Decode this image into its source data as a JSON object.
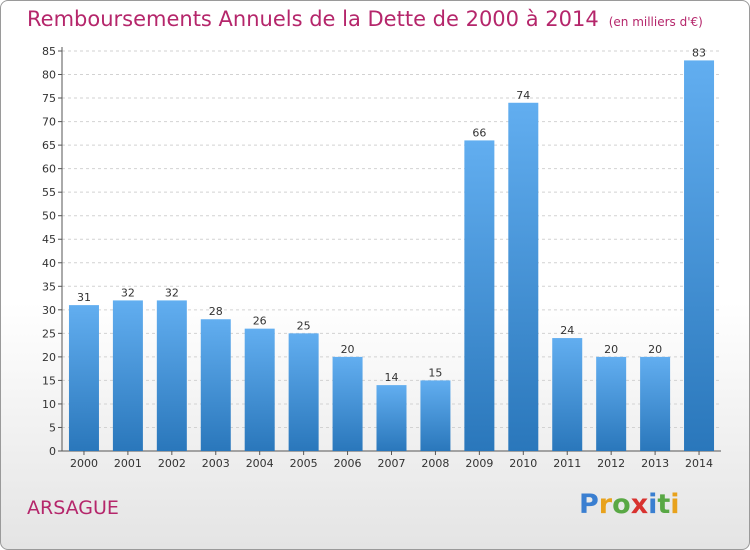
{
  "header": {
    "title": "Remboursements Annuels de la Dette de 2000 à 2014",
    "unit": "(en milliers d'€)"
  },
  "footer": {
    "commune": "ARSAGUE",
    "brand": [
      "P",
      "r",
      "o",
      "x",
      "i",
      "t",
      "i"
    ]
  },
  "colors": {
    "title": "#b5266b",
    "bar_light": "#62aef0",
    "bar_dark": "#2a77bb",
    "brand": [
      "#3a7fd1",
      "#e8a21c",
      "#59a845",
      "#d8322f",
      "#3a7fd1",
      "#59a845",
      "#e8a21c"
    ]
  },
  "chart_data": {
    "type": "bar",
    "categories": [
      "2000",
      "2001",
      "2002",
      "2003",
      "2004",
      "2005",
      "2006",
      "2007",
      "2008",
      "2009",
      "2010",
      "2011",
      "2012",
      "2013",
      "2014"
    ],
    "values": [
      31,
      32,
      32,
      28,
      26,
      25,
      20,
      14,
      15,
      66,
      74,
      24,
      20,
      20,
      83
    ],
    "ylim": [
      0,
      85
    ],
    "yticks": [
      0,
      5,
      10,
      15,
      20,
      25,
      30,
      35,
      40,
      45,
      50,
      55,
      60,
      65,
      70,
      75,
      80,
      85
    ],
    "grid": true,
    "data_labels": true
  }
}
